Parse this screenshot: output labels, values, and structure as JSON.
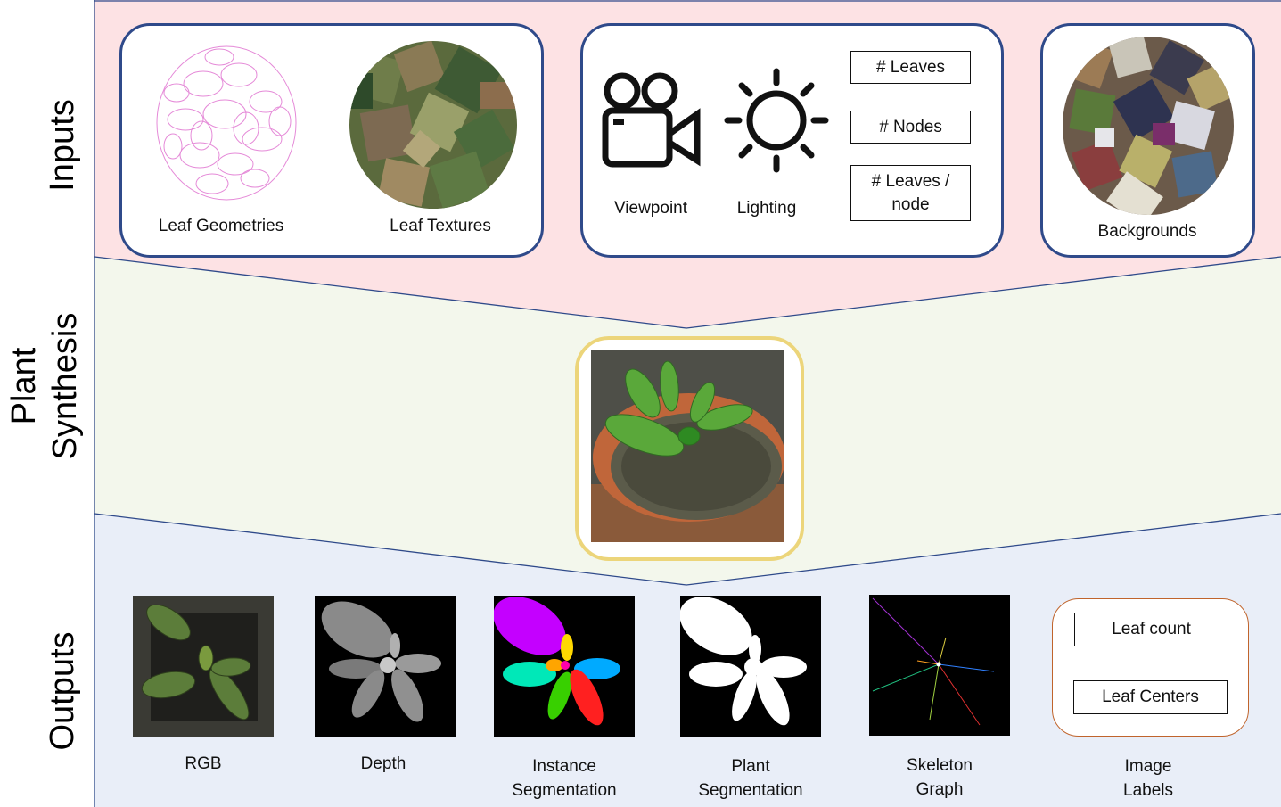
{
  "sections": {
    "inputs": "Inputs",
    "synthesis_line1": "Plant",
    "synthesis_line2": "Synthesis",
    "outputs": "Outputs"
  },
  "inputs": {
    "leaf_geometries": "Leaf Geometries",
    "leaf_textures": "Leaf Textures",
    "viewpoint": "Viewpoint",
    "lighting": "Lighting",
    "param_leaves": "# Leaves",
    "param_nodes": "# Nodes",
    "param_leaves_per_node_l1": "# Leaves /",
    "param_leaves_per_node_l2": "node",
    "backgrounds": "Backgrounds"
  },
  "outputs": {
    "rgb": "RGB",
    "depth": "Depth",
    "instance_l1": "Instance",
    "instance_l2": "Segmentation",
    "plant_l1": "Plant",
    "plant_l2": "Segmentation",
    "skeleton_l1": "Skeleton",
    "skeleton_l2": "Graph",
    "labels_l1": "Image",
    "labels_l2": "Labels",
    "leaf_count": "Leaf count",
    "leaf_centers": "Leaf Centers"
  },
  "colors": {
    "inputs_bg": "#fde2e4",
    "synthesis_bg": "#f3f7ec",
    "outputs_bg": "#e9eef8",
    "panel_border": "#2f4a8a",
    "synthesis_border": "#ecd57a",
    "labels_border": "#c0642c"
  }
}
